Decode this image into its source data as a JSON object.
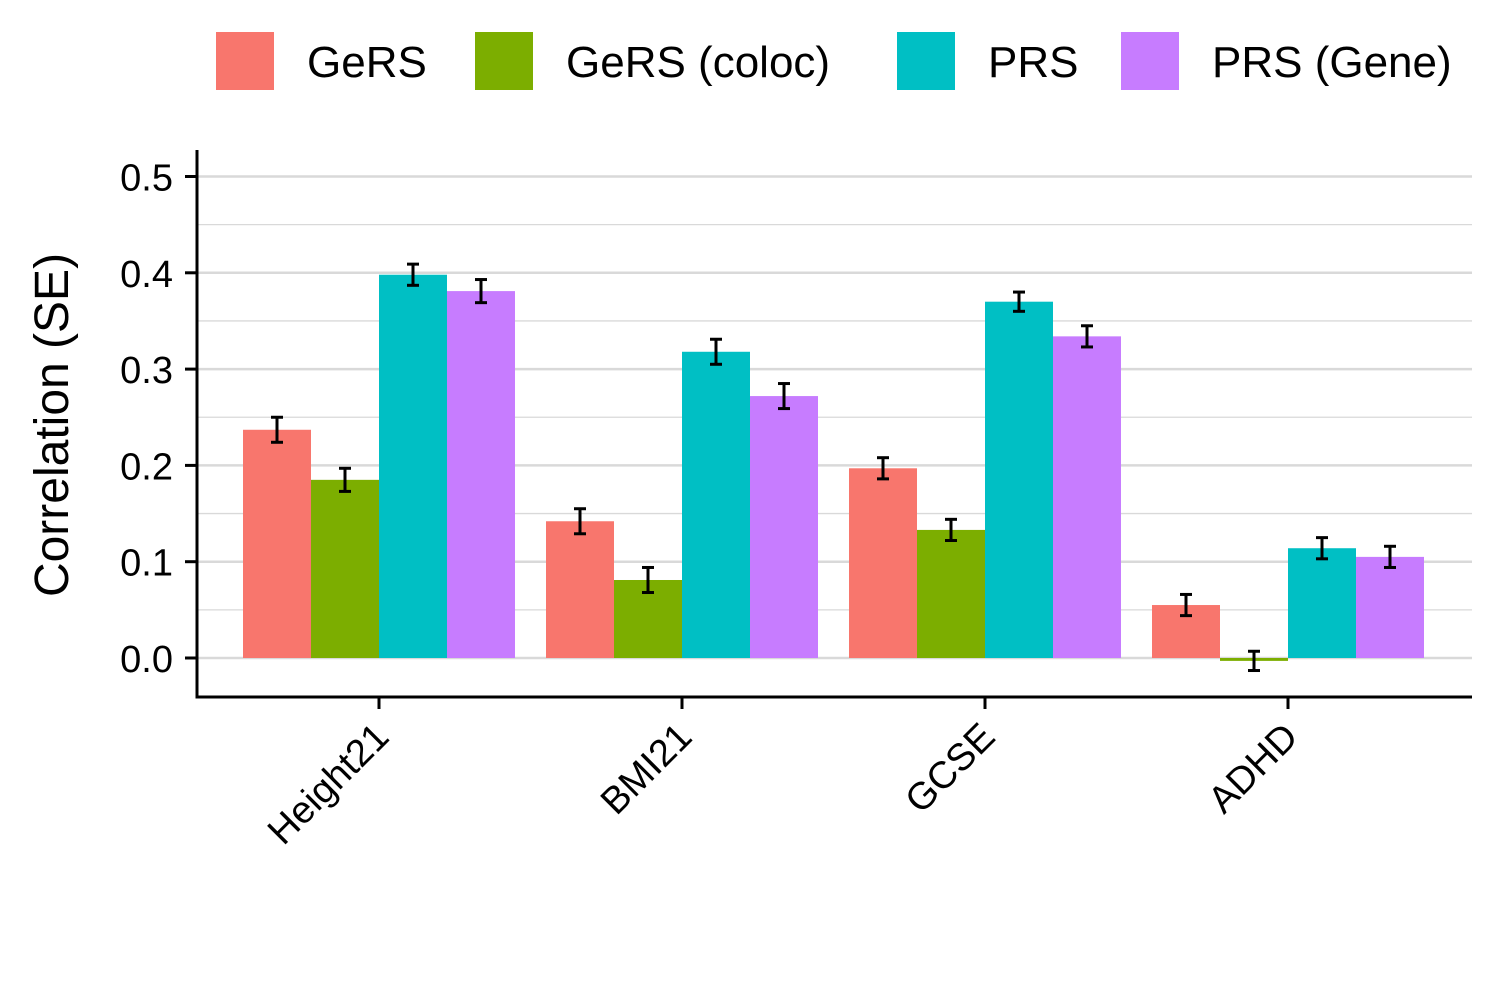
{
  "chart_data": {
    "type": "bar",
    "categories": [
      "Height21",
      "BMI21",
      "GCSE",
      "ADHD"
    ],
    "series": [
      {
        "name": "GeRS",
        "color": "#F8766D",
        "values": [
          0.237,
          0.142,
          0.197,
          0.055
        ],
        "se": [
          0.013,
          0.013,
          0.011,
          0.011
        ]
      },
      {
        "name": "GeRS (coloc)",
        "color": "#7CAE00",
        "values": [
          0.185,
          0.081,
          0.133,
          -0.003
        ],
        "se": [
          0.012,
          0.013,
          0.011,
          0.01
        ]
      },
      {
        "name": "PRS",
        "color": "#00BFC4",
        "values": [
          0.398,
          0.318,
          0.37,
          0.114
        ],
        "se": [
          0.011,
          0.013,
          0.01,
          0.011
        ]
      },
      {
        "name": "PRS (Gene)",
        "color": "#C77CFF",
        "values": [
          0.381,
          0.272,
          0.334,
          0.105
        ],
        "se": [
          0.012,
          0.013,
          0.011,
          0.011
        ]
      }
    ],
    "xlabel": "",
    "ylabel": "Correlation (SE)",
    "ylim": [
      -0.04,
      0.52
    ],
    "yticks": [
      "0.0",
      "0.1",
      "0.2",
      "0.3",
      "0.4",
      "0.5"
    ],
    "ytick_values": [
      0,
      0.1,
      0.2,
      0.3,
      0.4,
      0.5
    ],
    "grid": true,
    "legend_position": "top"
  }
}
